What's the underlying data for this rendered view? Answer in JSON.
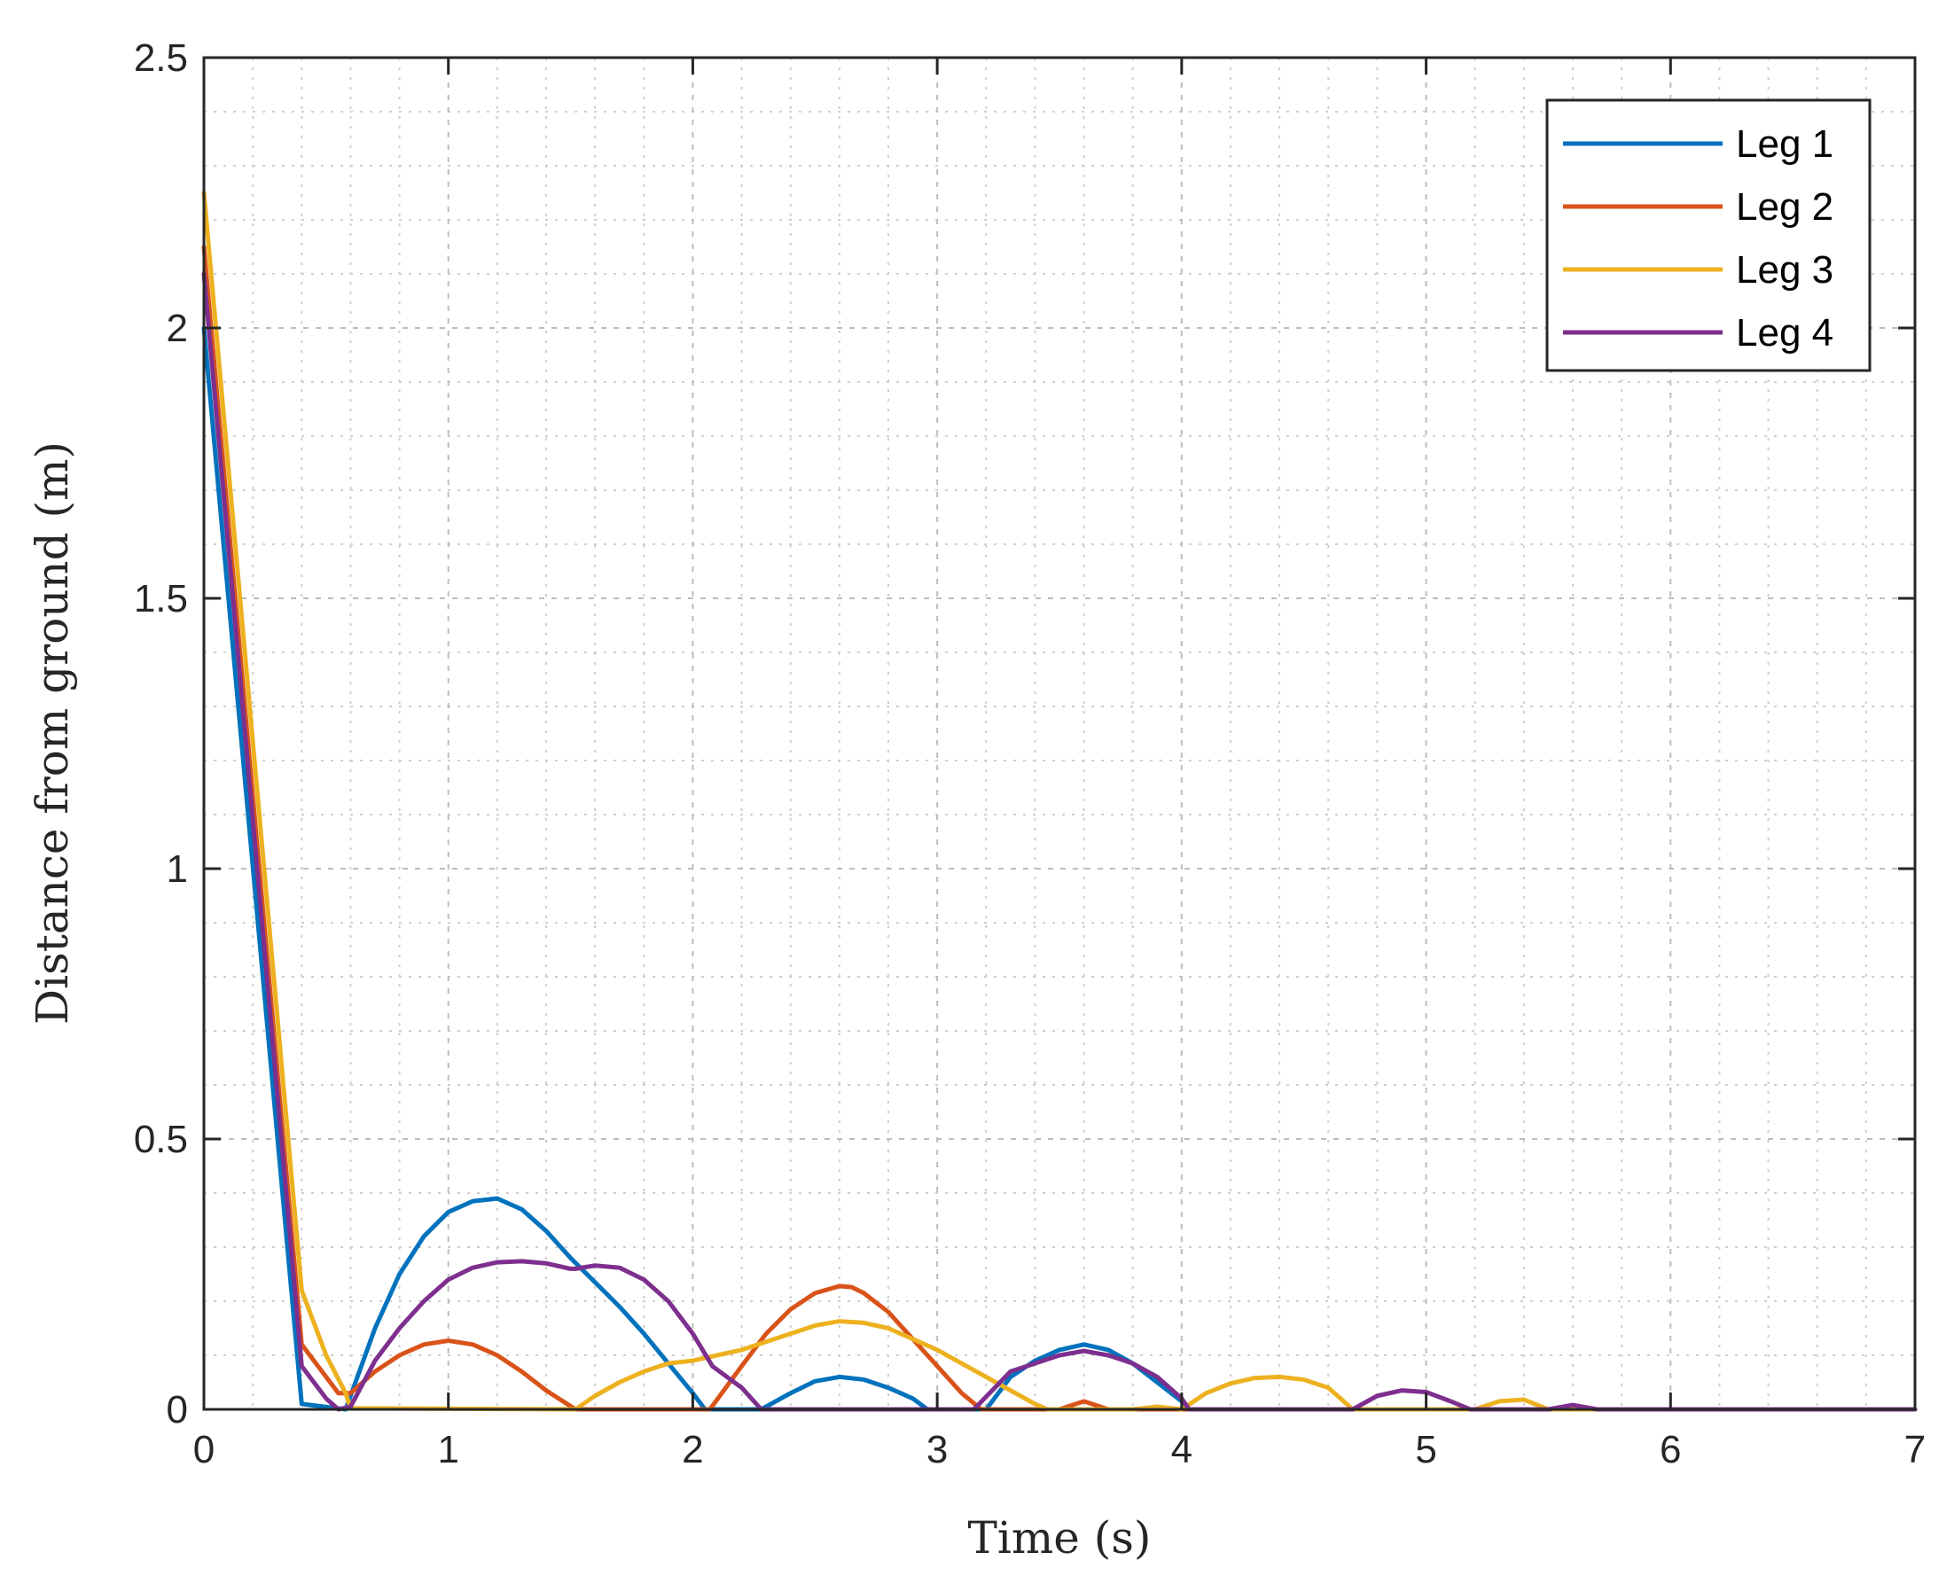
{
  "chart_data": {
    "type": "line",
    "title": "",
    "xlabel": "Time (s)",
    "ylabel": "Distance from ground (m)",
    "xlim": [
      0,
      7
    ],
    "ylim": [
      0,
      2.5
    ],
    "xticks": [
      0,
      1,
      2,
      3,
      4,
      5,
      6,
      7
    ],
    "xtick_labels": [
      "0",
      "1",
      "2",
      "3",
      "4",
      "5",
      "6",
      "7"
    ],
    "yticks": [
      0,
      0.5,
      1,
      1.5,
      2,
      2.5
    ],
    "ytick_labels": [
      "0",
      "0.5",
      "1",
      "1.5",
      "2",
      "2.5"
    ],
    "grid": true,
    "minor_grid": true,
    "legend_position": "top-right",
    "series": [
      {
        "name": "Leg 1",
        "color": "#0072BD",
        "x": [
          0,
          0.4,
          0.58,
          0.7,
          0.8,
          0.9,
          1.0,
          1.1,
          1.2,
          1.3,
          1.4,
          1.5,
          1.6,
          1.7,
          1.8,
          1.9,
          2.0,
          2.05,
          2.28,
          2.4,
          2.5,
          2.6,
          2.7,
          2.8,
          2.9,
          2.96,
          3.2,
          3.3,
          3.4,
          3.5,
          3.6,
          3.7,
          3.8,
          3.9,
          4.0,
          4.03,
          7.0
        ],
        "y": [
          2.0,
          0.01,
          0.0,
          0.15,
          0.25,
          0.32,
          0.365,
          0.385,
          0.39,
          0.37,
          0.33,
          0.28,
          0.235,
          0.19,
          0.14,
          0.085,
          0.03,
          0.0,
          0.0,
          0.03,
          0.052,
          0.06,
          0.055,
          0.04,
          0.02,
          0.0,
          0.0,
          0.06,
          0.09,
          0.11,
          0.12,
          0.11,
          0.085,
          0.05,
          0.015,
          0.0,
          0.0
        ]
      },
      {
        "name": "Leg 2",
        "color": "#D95319",
        "x": [
          0,
          0.4,
          0.55,
          0.6,
          0.7,
          0.8,
          0.9,
          1.0,
          1.1,
          1.2,
          1.3,
          1.4,
          1.52,
          2.07,
          2.2,
          2.3,
          2.4,
          2.5,
          2.6,
          2.65,
          2.7,
          2.8,
          2.9,
          3.0,
          3.1,
          3.18,
          3.5,
          3.6,
          3.7,
          7.0
        ],
        "y": [
          2.15,
          0.12,
          0.03,
          0.03,
          0.07,
          0.1,
          0.12,
          0.127,
          0.12,
          0.1,
          0.07,
          0.035,
          0.0,
          0.0,
          0.08,
          0.14,
          0.185,
          0.215,
          0.228,
          0.226,
          0.215,
          0.18,
          0.13,
          0.08,
          0.03,
          0.0,
          0.0,
          0.015,
          0.0,
          0.0
        ]
      },
      {
        "name": "Leg 3",
        "color": "#EDB120",
        "x": [
          0,
          0.4,
          0.5,
          0.58,
          0.6,
          1.52,
          1.6,
          1.7,
          1.8,
          1.9,
          2.0,
          2.1,
          2.2,
          2.3,
          2.4,
          2.5,
          2.6,
          2.7,
          2.8,
          2.9,
          3.0,
          3.1,
          3.2,
          3.3,
          3.4,
          3.45,
          3.8,
          3.9,
          4.0,
          4.1,
          4.2,
          4.3,
          4.4,
          4.5,
          4.6,
          4.7,
          5.2,
          5.3,
          5.4,
          5.5,
          7.0
        ],
        "y": [
          2.25,
          0.22,
          0.1,
          0.03,
          0.002,
          0.0,
          0.025,
          0.05,
          0.07,
          0.085,
          0.09,
          0.1,
          0.11,
          0.125,
          0.14,
          0.155,
          0.163,
          0.16,
          0.15,
          0.13,
          0.11,
          0.085,
          0.06,
          0.035,
          0.01,
          0.0,
          0.0,
          0.005,
          0.0,
          0.03,
          0.048,
          0.058,
          0.06,
          0.055,
          0.04,
          0.0,
          0.0,
          0.015,
          0.018,
          0.0,
          0.0
        ]
      },
      {
        "name": "Leg 4",
        "color": "#7E2F8E",
        "x": [
          0,
          0.4,
          0.5,
          0.55,
          0.6,
          0.7,
          0.8,
          0.9,
          1.0,
          1.1,
          1.2,
          1.3,
          1.4,
          1.5,
          1.52,
          1.6,
          1.7,
          1.8,
          1.9,
          2.0,
          2.08,
          2.2,
          2.28,
          3.15,
          3.3,
          3.5,
          3.6,
          3.7,
          3.8,
          3.9,
          4.0,
          4.03,
          4.7,
          4.8,
          4.9,
          5.0,
          5.1,
          5.18,
          5.5,
          5.6,
          5.7,
          7.0
        ],
        "y": [
          2.1,
          0.08,
          0.02,
          0.0,
          0.005,
          0.09,
          0.15,
          0.2,
          0.24,
          0.262,
          0.272,
          0.274,
          0.27,
          0.26,
          0.26,
          0.266,
          0.262,
          0.24,
          0.2,
          0.14,
          0.08,
          0.04,
          0.0,
          0.0,
          0.07,
          0.1,
          0.108,
          0.1,
          0.085,
          0.06,
          0.02,
          0.0,
          0.0,
          0.025,
          0.035,
          0.032,
          0.015,
          0.0,
          0.0,
          0.008,
          0.0,
          0.0
        ]
      }
    ]
  }
}
